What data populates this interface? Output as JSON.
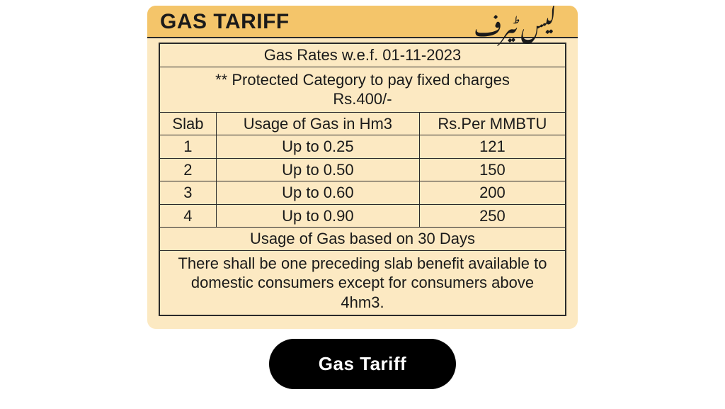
{
  "colors": {
    "card_bg": "#fce9c2",
    "header_bg": "#f4c56a",
    "border": "#2a2a2a",
    "text": "#1a1a1a",
    "button_bg": "#000000",
    "button_text": "#ffffff"
  },
  "header": {
    "title_en": "GAS TARIFF",
    "title_ur": "گیس ٹیرف"
  },
  "table": {
    "rates_line": "Gas Rates w.e.f. 01-11-2023",
    "protected_line1": "** Protected Category to pay fixed charges",
    "protected_line2": "Rs.400/-",
    "col_slab": "Slab",
    "col_usage": "Usage of Gas in Hm3",
    "col_rate": "Rs.Per MMBTU",
    "rows": [
      {
        "slab": "1",
        "usage": "Up to 0.25",
        "rate": "121"
      },
      {
        "slab": "2",
        "usage": "Up to 0.50",
        "rate": "150"
      },
      {
        "slab": "3",
        "usage": "Up to 0.60",
        "rate": "200"
      },
      {
        "slab": "4",
        "usage": "Up to 0.90",
        "rate": "250"
      }
    ],
    "footer1": "Usage of Gas based on 30 Days",
    "footer2": "There shall be one preceding slab benefit available to domestic consumers except for consumers above 4hm3."
  },
  "button": {
    "label": "Gas Tariff"
  }
}
